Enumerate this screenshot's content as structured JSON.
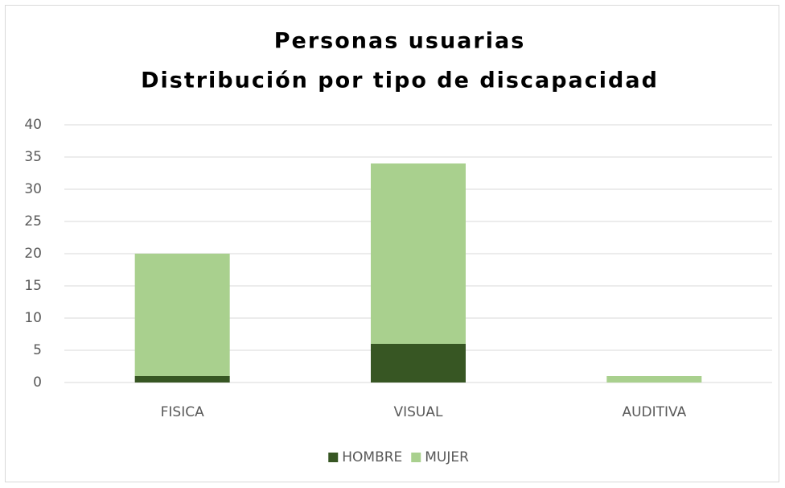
{
  "chart_data": {
    "type": "stacked_bar",
    "title": "Personas usuarias",
    "subtitle": "Distribución por tipo de discapacidad",
    "categories": [
      "FISICA",
      "VISUAL",
      "AUDITIVA"
    ],
    "series": [
      {
        "name": "HOMBRE",
        "color": "#375623",
        "values": [
          1,
          6,
          0
        ]
      },
      {
        "name": "MUJER",
        "color": "#a9d08e",
        "values": [
          19,
          28,
          1
        ]
      }
    ],
    "ylim": [
      0,
      40
    ],
    "yticks": [
      0,
      5,
      10,
      15,
      20,
      25,
      30,
      35,
      40
    ],
    "grid": true,
    "legend": "bottom"
  }
}
